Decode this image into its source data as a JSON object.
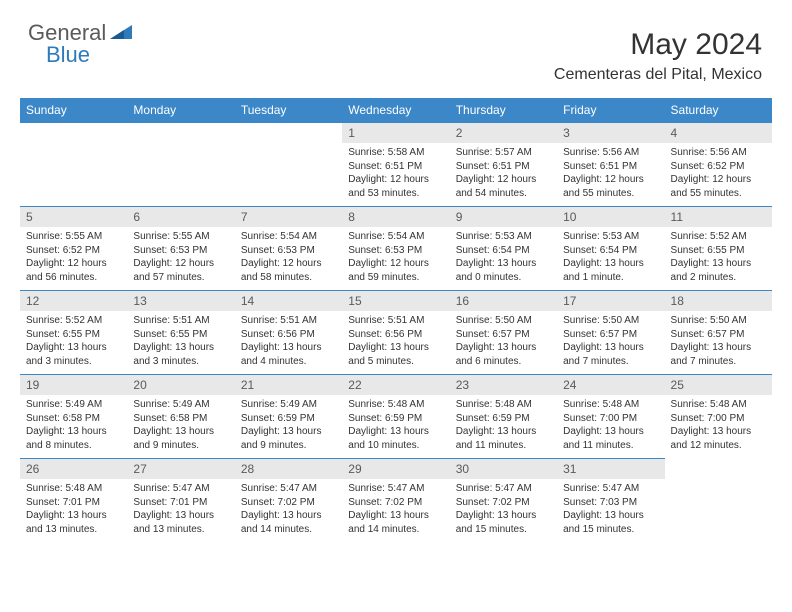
{
  "logo": {
    "text1": "General",
    "text2": "Blue"
  },
  "title": "May 2024",
  "location": "Cementeras del Pital, Mexico",
  "colors": {
    "header_bg": "#3b87c8",
    "header_fg": "#ffffff",
    "daynum_bg": "#e8e8e8",
    "daynum_fg": "#5a5a5a",
    "text": "#333333",
    "rule": "#3b87c8"
  },
  "weekdays": [
    "Sunday",
    "Monday",
    "Tuesday",
    "Wednesday",
    "Thursday",
    "Friday",
    "Saturday"
  ],
  "weeks": [
    [
      null,
      null,
      null,
      {
        "d": "1",
        "sr": "5:58 AM",
        "ss": "6:51 PM",
        "dl": "12 hours and 53 minutes."
      },
      {
        "d": "2",
        "sr": "5:57 AM",
        "ss": "6:51 PM",
        "dl": "12 hours and 54 minutes."
      },
      {
        "d": "3",
        "sr": "5:56 AM",
        "ss": "6:51 PM",
        "dl": "12 hours and 55 minutes."
      },
      {
        "d": "4",
        "sr": "5:56 AM",
        "ss": "6:52 PM",
        "dl": "12 hours and 55 minutes."
      }
    ],
    [
      {
        "d": "5",
        "sr": "5:55 AM",
        "ss": "6:52 PM",
        "dl": "12 hours and 56 minutes."
      },
      {
        "d": "6",
        "sr": "5:55 AM",
        "ss": "6:53 PM",
        "dl": "12 hours and 57 minutes."
      },
      {
        "d": "7",
        "sr": "5:54 AM",
        "ss": "6:53 PM",
        "dl": "12 hours and 58 minutes."
      },
      {
        "d": "8",
        "sr": "5:54 AM",
        "ss": "6:53 PM",
        "dl": "12 hours and 59 minutes."
      },
      {
        "d": "9",
        "sr": "5:53 AM",
        "ss": "6:54 PM",
        "dl": "13 hours and 0 minutes."
      },
      {
        "d": "10",
        "sr": "5:53 AM",
        "ss": "6:54 PM",
        "dl": "13 hours and 1 minute."
      },
      {
        "d": "11",
        "sr": "5:52 AM",
        "ss": "6:55 PM",
        "dl": "13 hours and 2 minutes."
      }
    ],
    [
      {
        "d": "12",
        "sr": "5:52 AM",
        "ss": "6:55 PM",
        "dl": "13 hours and 3 minutes."
      },
      {
        "d": "13",
        "sr": "5:51 AM",
        "ss": "6:55 PM",
        "dl": "13 hours and 3 minutes."
      },
      {
        "d": "14",
        "sr": "5:51 AM",
        "ss": "6:56 PM",
        "dl": "13 hours and 4 minutes."
      },
      {
        "d": "15",
        "sr": "5:51 AM",
        "ss": "6:56 PM",
        "dl": "13 hours and 5 minutes."
      },
      {
        "d": "16",
        "sr": "5:50 AM",
        "ss": "6:57 PM",
        "dl": "13 hours and 6 minutes."
      },
      {
        "d": "17",
        "sr": "5:50 AM",
        "ss": "6:57 PM",
        "dl": "13 hours and 7 minutes."
      },
      {
        "d": "18",
        "sr": "5:50 AM",
        "ss": "6:57 PM",
        "dl": "13 hours and 7 minutes."
      }
    ],
    [
      {
        "d": "19",
        "sr": "5:49 AM",
        "ss": "6:58 PM",
        "dl": "13 hours and 8 minutes."
      },
      {
        "d": "20",
        "sr": "5:49 AM",
        "ss": "6:58 PM",
        "dl": "13 hours and 9 minutes."
      },
      {
        "d": "21",
        "sr": "5:49 AM",
        "ss": "6:59 PM",
        "dl": "13 hours and 9 minutes."
      },
      {
        "d": "22",
        "sr": "5:48 AM",
        "ss": "6:59 PM",
        "dl": "13 hours and 10 minutes."
      },
      {
        "d": "23",
        "sr": "5:48 AM",
        "ss": "6:59 PM",
        "dl": "13 hours and 11 minutes."
      },
      {
        "d": "24",
        "sr": "5:48 AM",
        "ss": "7:00 PM",
        "dl": "13 hours and 11 minutes."
      },
      {
        "d": "25",
        "sr": "5:48 AM",
        "ss": "7:00 PM",
        "dl": "13 hours and 12 minutes."
      }
    ],
    [
      {
        "d": "26",
        "sr": "5:48 AM",
        "ss": "7:01 PM",
        "dl": "13 hours and 13 minutes."
      },
      {
        "d": "27",
        "sr": "5:47 AM",
        "ss": "7:01 PM",
        "dl": "13 hours and 13 minutes."
      },
      {
        "d": "28",
        "sr": "5:47 AM",
        "ss": "7:02 PM",
        "dl": "13 hours and 14 minutes."
      },
      {
        "d": "29",
        "sr": "5:47 AM",
        "ss": "7:02 PM",
        "dl": "13 hours and 14 minutes."
      },
      {
        "d": "30",
        "sr": "5:47 AM",
        "ss": "7:02 PM",
        "dl": "13 hours and 15 minutes."
      },
      {
        "d": "31",
        "sr": "5:47 AM",
        "ss": "7:03 PM",
        "dl": "13 hours and 15 minutes."
      },
      null
    ]
  ],
  "labels": {
    "sunrise": "Sunrise:",
    "sunset": "Sunset:",
    "daylight": "Daylight:"
  }
}
